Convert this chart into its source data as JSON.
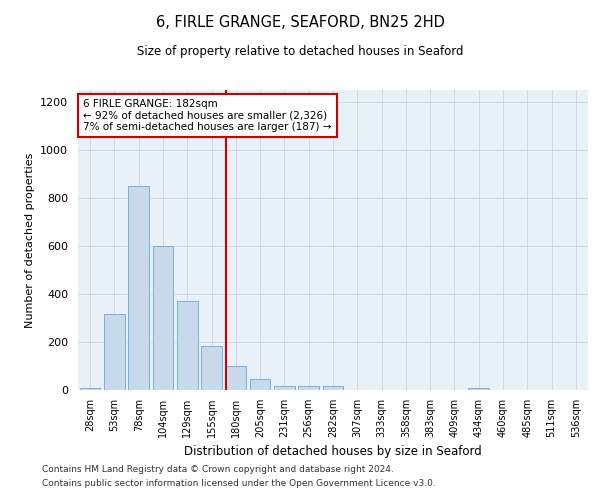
{
  "title": "6, FIRLE GRANGE, SEAFORD, BN25 2HD",
  "subtitle": "Size of property relative to detached houses in Seaford",
  "xlabel": "Distribution of detached houses by size in Seaford",
  "ylabel": "Number of detached properties",
  "categories": [
    "28sqm",
    "53sqm",
    "78sqm",
    "104sqm",
    "129sqm",
    "155sqm",
    "180sqm",
    "205sqm",
    "231sqm",
    "256sqm",
    "282sqm",
    "307sqm",
    "333sqm",
    "358sqm",
    "383sqm",
    "409sqm",
    "434sqm",
    "460sqm",
    "485sqm",
    "511sqm",
    "536sqm"
  ],
  "values": [
    10,
    315,
    850,
    600,
    370,
    185,
    100,
    45,
    18,
    15,
    18,
    0,
    0,
    0,
    0,
    0,
    8,
    0,
    0,
    0,
    0
  ],
  "bar_color": "#c8d9ec",
  "bar_edge_color": "#6aaad4",
  "grid_color": "#d0d8e4",
  "background_color": "#e8f0f8",
  "vline_color": "#cc0000",
  "annotation_text": "6 FIRLE GRANGE: 182sqm\n← 92% of detached houses are smaller (2,326)\n7% of semi-detached houses are larger (187) →",
  "annotation_box_color": "#cc0000",
  "ylim": [
    0,
    1250
  ],
  "yticks": [
    0,
    200,
    400,
    600,
    800,
    1000,
    1200
  ],
  "footer_line1": "Contains HM Land Registry data © Crown copyright and database right 2024.",
  "footer_line2": "Contains public sector information licensed under the Open Government Licence v3.0."
}
